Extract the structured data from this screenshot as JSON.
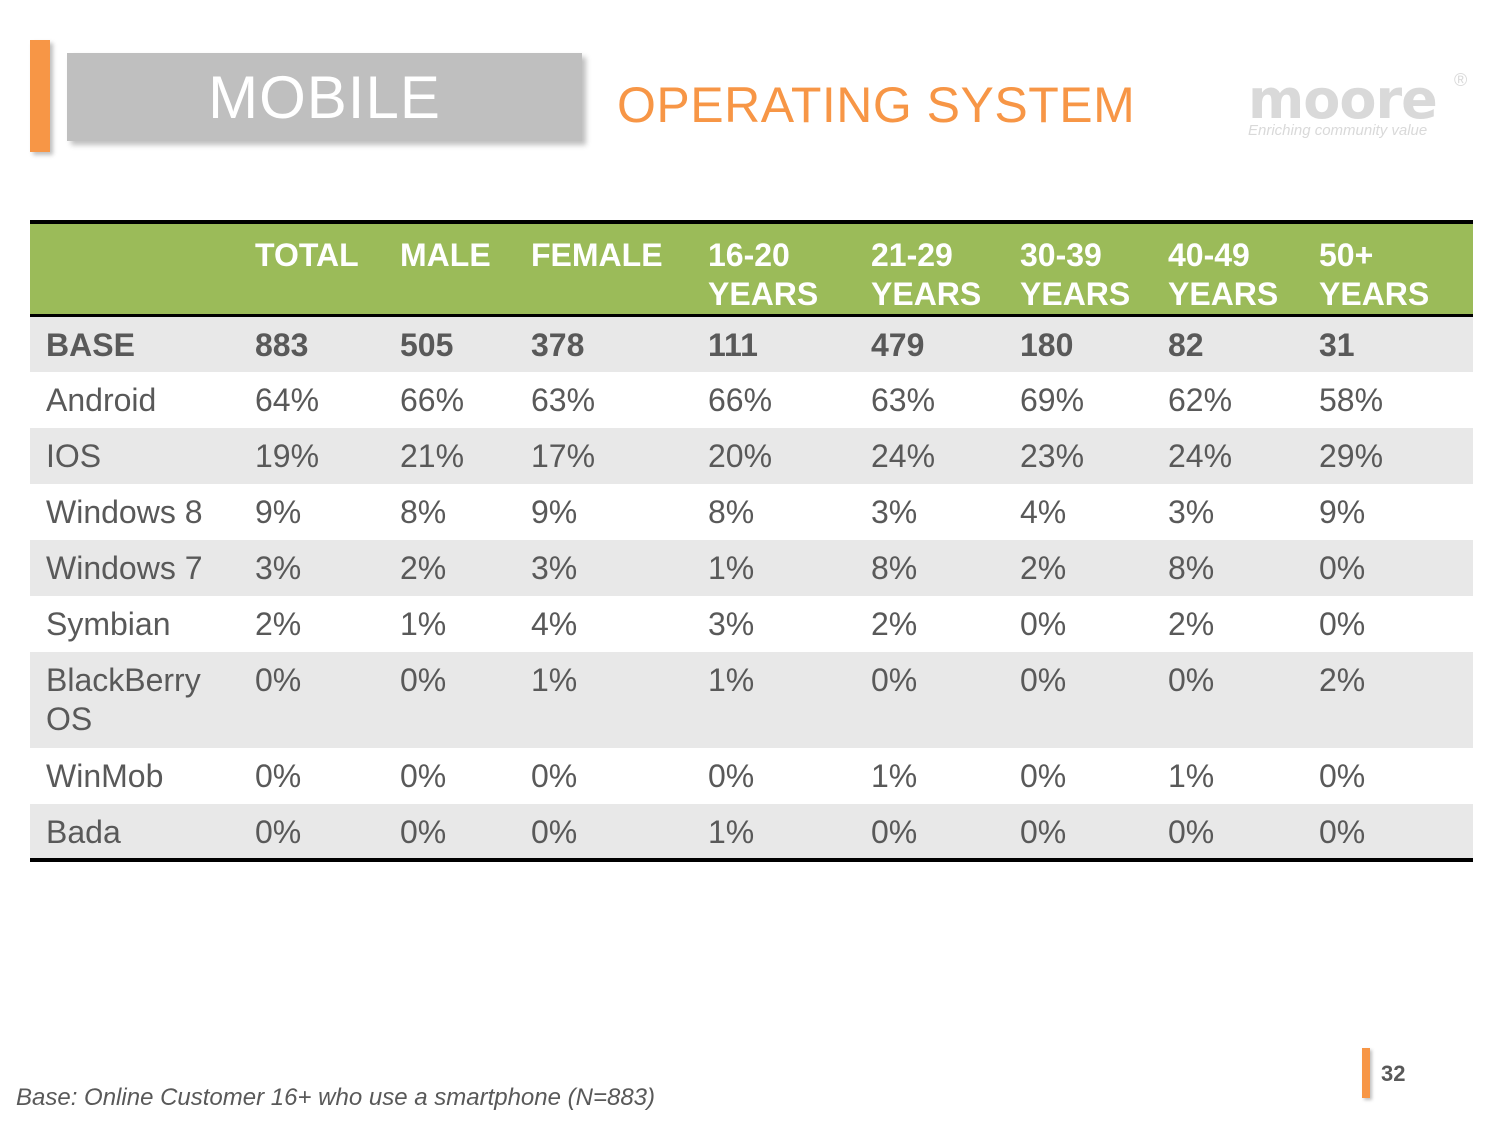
{
  "header": {
    "section": "MOBILE",
    "title": "OPERATING SYSTEM"
  },
  "logo": {
    "word": "moore",
    "reg": "®",
    "tagline": "Enriching community value"
  },
  "colors": {
    "accent": "#F79646",
    "header_green": "#9BBB59",
    "section_gray": "#BFBFBF",
    "row_shade": "#E8E8E8",
    "text": "#595959"
  },
  "table": {
    "columns": [
      "",
      "TOTAL",
      "MALE",
      "FEMALE",
      "16-20 YEARS",
      "21-29 YEARS",
      "30-39 YEARS",
      "40-49 YEARS",
      "50+ YEARS"
    ],
    "rows": [
      [
        "BASE",
        "883",
        "505",
        "378",
        "111",
        "479",
        "180",
        "82",
        "31"
      ],
      [
        "Android",
        "64%",
        "66%",
        "63%",
        "66%",
        "63%",
        "69%",
        "62%",
        "58%"
      ],
      [
        "IOS",
        "19%",
        "21%",
        "17%",
        "20%",
        "24%",
        "23%",
        "24%",
        "29%"
      ],
      [
        "Windows 8",
        "9%",
        "8%",
        "9%",
        "8%",
        "3%",
        "4%",
        "3%",
        "9%"
      ],
      [
        "Windows 7",
        "3%",
        "2%",
        "3%",
        "1%",
        "8%",
        "2%",
        "8%",
        "0%"
      ],
      [
        "Symbian",
        "2%",
        "1%",
        "4%",
        "3%",
        "2%",
        "0%",
        "2%",
        "0%"
      ],
      [
        "BlackBerry OS",
        "0%",
        "0%",
        "1%",
        "1%",
        "0%",
        "0%",
        "0%",
        "2%"
      ],
      [
        "WinMob",
        "0%",
        "0%",
        "0%",
        "0%",
        "1%",
        "0%",
        "1%",
        "0%"
      ],
      [
        "Bada",
        "0%",
        "0%",
        "0%",
        "1%",
        "0%",
        "0%",
        "0%",
        "0%"
      ]
    ]
  },
  "footnote": "Base: Online Customer 16+ who use a smartphone (N=883)",
  "page_number": "32"
}
